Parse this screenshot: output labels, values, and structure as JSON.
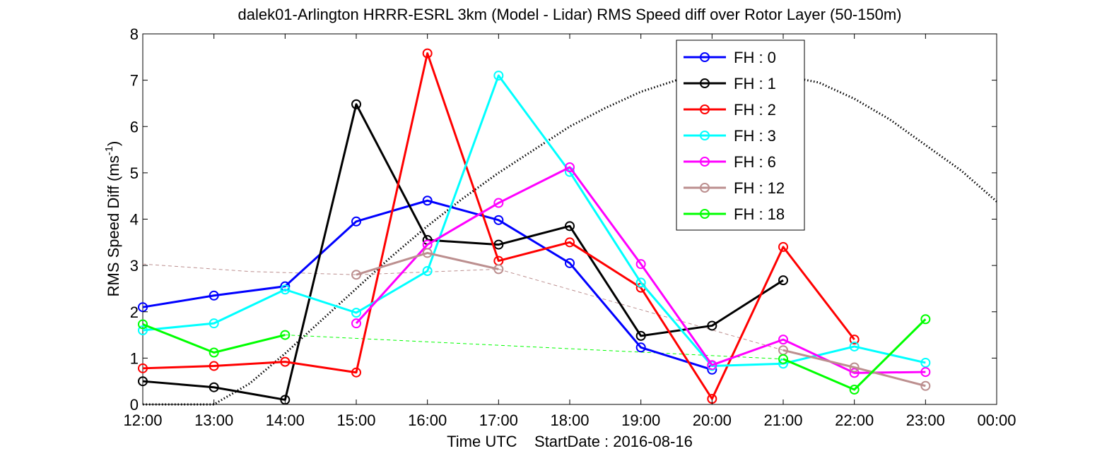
{
  "chart_data": {
    "type": "line",
    "title": "dalek01-Arlington HRRR-ESRL 3km (Model - Lidar) RMS Speed diff over Rotor Layer (50-150m)",
    "xlabel": "Time UTC    StartDate : 2016-08-16",
    "ylabel_main": "RMS Speed Diff (ms",
    "ylabel_sup": "-1",
    "ylabel_close": ")",
    "x_ticks": [
      "12:00",
      "13:00",
      "14:00",
      "15:00",
      "16:00",
      "17:00",
      "18:00",
      "19:00",
      "20:00",
      "21:00",
      "22:00",
      "23:00",
      "00:00"
    ],
    "xlim": [
      0,
      12
    ],
    "y_ticks": [
      "0",
      "1",
      "2",
      "3",
      "4",
      "5",
      "6",
      "7",
      "8"
    ],
    "ylim": [
      0,
      8
    ],
    "grid": false,
    "legend_position": "top-right",
    "series": [
      {
        "name": "FH : 0",
        "color": "#0000ff",
        "points": [
          [
            0,
            2.1
          ],
          [
            1,
            2.35
          ],
          [
            2,
            2.55
          ],
          [
            3,
            3.95
          ],
          [
            4,
            4.4
          ],
          [
            5,
            3.98
          ],
          [
            6,
            3.05
          ],
          [
            7,
            1.23
          ],
          [
            8,
            0.75
          ]
        ],
        "dashed": []
      },
      {
        "name": "FH : 1",
        "color": "#000000",
        "points": [
          [
            0,
            0.5
          ],
          [
            1,
            0.37
          ],
          [
            2,
            0.1
          ],
          [
            3,
            6.48
          ],
          [
            4,
            3.55
          ],
          [
            5,
            3.45
          ],
          [
            6,
            3.85
          ],
          [
            7,
            1.48
          ],
          [
            8,
            1.7
          ],
          [
            9,
            2.68
          ]
        ],
        "dashed": []
      },
      {
        "name": "FH : 2",
        "color": "#ff0000",
        "points": [
          [
            0,
            0.78
          ],
          [
            1,
            0.83
          ],
          [
            2,
            0.92
          ],
          [
            3,
            0.69
          ],
          [
            4,
            7.58
          ],
          [
            5,
            3.1
          ],
          [
            6,
            3.5
          ],
          [
            7,
            2.52
          ],
          [
            8,
            0.12
          ],
          [
            9,
            3.4
          ],
          [
            10,
            1.4
          ]
        ],
        "dashed": []
      },
      {
        "name": "FH : 3",
        "color": "#00ffff",
        "points": [
          [
            0,
            1.6
          ],
          [
            1,
            1.75
          ],
          [
            2,
            2.48
          ],
          [
            3,
            1.98
          ],
          [
            4,
            2.88
          ],
          [
            5,
            7.1
          ],
          [
            6,
            5.02
          ],
          [
            7,
            2.63
          ],
          [
            8,
            0.83
          ],
          [
            9,
            0.88
          ],
          [
            10,
            1.25
          ],
          [
            11,
            0.9
          ]
        ],
        "dashed": []
      },
      {
        "name": "FH : 6",
        "color": "#ff00ff",
        "points": [
          [
            3,
            1.75
          ],
          [
            4,
            3.45
          ],
          [
            5,
            4.35
          ],
          [
            6,
            5.12
          ],
          [
            7,
            3.03
          ],
          [
            8,
            0.85
          ],
          [
            9,
            1.4
          ],
          [
            10,
            0.68
          ],
          [
            11,
            0.7
          ]
        ],
        "dashed": []
      },
      {
        "name": "FH : 12",
        "color": "#bc8f8f",
        "points": [
          [
            3,
            2.8
          ],
          [
            4,
            3.27
          ],
          [
            5,
            2.92
          ],
          [
            9,
            1.17
          ],
          [
            10,
            0.8
          ],
          [
            11,
            0.4
          ]
        ],
        "dashed": [
          [
            0,
            3.03
          ],
          [
            1.5,
            2.87
          ],
          [
            3,
            2.8
          ],
          [
            5,
            2.92
          ],
          [
            9,
            1.17
          ]
        ]
      },
      {
        "name": "FH : 18",
        "color": "#00ff00",
        "points": [
          [
            0,
            1.73
          ],
          [
            1,
            1.12
          ],
          [
            2,
            1.5
          ],
          [
            9,
            0.98
          ],
          [
            10,
            0.32
          ],
          [
            11,
            1.84
          ]
        ],
        "dashed": [
          [
            2,
            1.5
          ],
          [
            9,
            0.98
          ]
        ]
      }
    ],
    "reference_curve": {
      "style": "dotted",
      "color": "#000000",
      "points": [
        [
          0,
          0
        ],
        [
          1,
          0
        ],
        [
          1.5,
          0.45
        ],
        [
          2,
          1.1
        ],
        [
          2.5,
          1.8
        ],
        [
          3,
          2.5
        ],
        [
          3.5,
          3.2
        ],
        [
          4,
          3.85
        ],
        [
          4.5,
          4.45
        ],
        [
          5,
          5.0
        ],
        [
          5.5,
          5.5
        ],
        [
          6,
          6.0
        ],
        [
          6.5,
          6.4
        ],
        [
          7,
          6.75
        ],
        [
          7.5,
          7.0
        ],
        [
          8,
          7.15
        ],
        [
          8.5,
          7.18
        ],
        [
          9,
          7.1
        ],
        [
          9.5,
          6.95
        ],
        [
          10,
          6.6
        ],
        [
          10.5,
          6.15
        ],
        [
          11,
          5.6
        ],
        [
          11.5,
          5.05
        ],
        [
          12,
          4.38
        ]
      ]
    }
  }
}
